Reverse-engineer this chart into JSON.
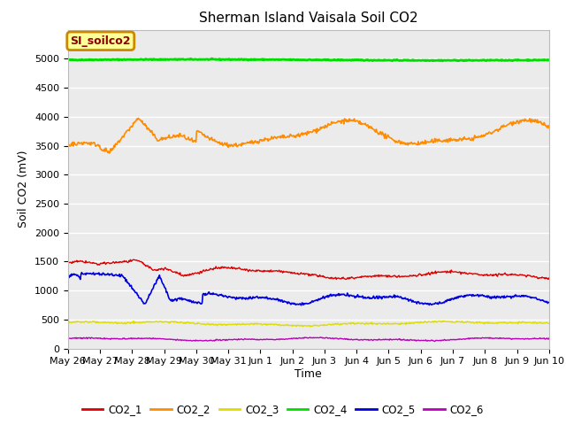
{
  "title": "Sherman Island Vaisala Soil CO2",
  "xlabel": "Time",
  "ylabel": "Soil CO2 (mV)",
  "annotation_text": "SI_soilco2",
  "annotation_box_color": "#ffff99",
  "annotation_border_color": "#cc8800",
  "ylim": [
    0,
    5500
  ],
  "yticks": [
    0,
    500,
    1000,
    1500,
    2000,
    2500,
    3000,
    3500,
    4000,
    4500,
    5000
  ],
  "fig_bg_color": "#ffffff",
  "plot_bg_color": "#ebebeb",
  "grid_color": "#ffffff",
  "series_colors": {
    "CO2_1": "#dd0000",
    "CO2_2": "#ff8c00",
    "CO2_3": "#dddd00",
    "CO2_4": "#00dd00",
    "CO2_5": "#0000dd",
    "CO2_6": "#bb00bb"
  },
  "num_points": 700,
  "xtick_labels": [
    "May 26",
    "May 27",
    "May 28",
    "May 29",
    "May 30",
    "May 31",
    "Jun 1",
    "Jun 2",
    "Jun 3",
    "Jun 4",
    "Jun 5",
    "Jun 6",
    "Jun 7",
    "Jun 8",
    "Jun 9",
    "Jun 10"
  ],
  "xtick_positions": [
    0,
    1,
    2,
    3,
    4,
    5,
    6,
    7,
    8,
    9,
    10,
    11,
    12,
    13,
    14,
    15
  ]
}
